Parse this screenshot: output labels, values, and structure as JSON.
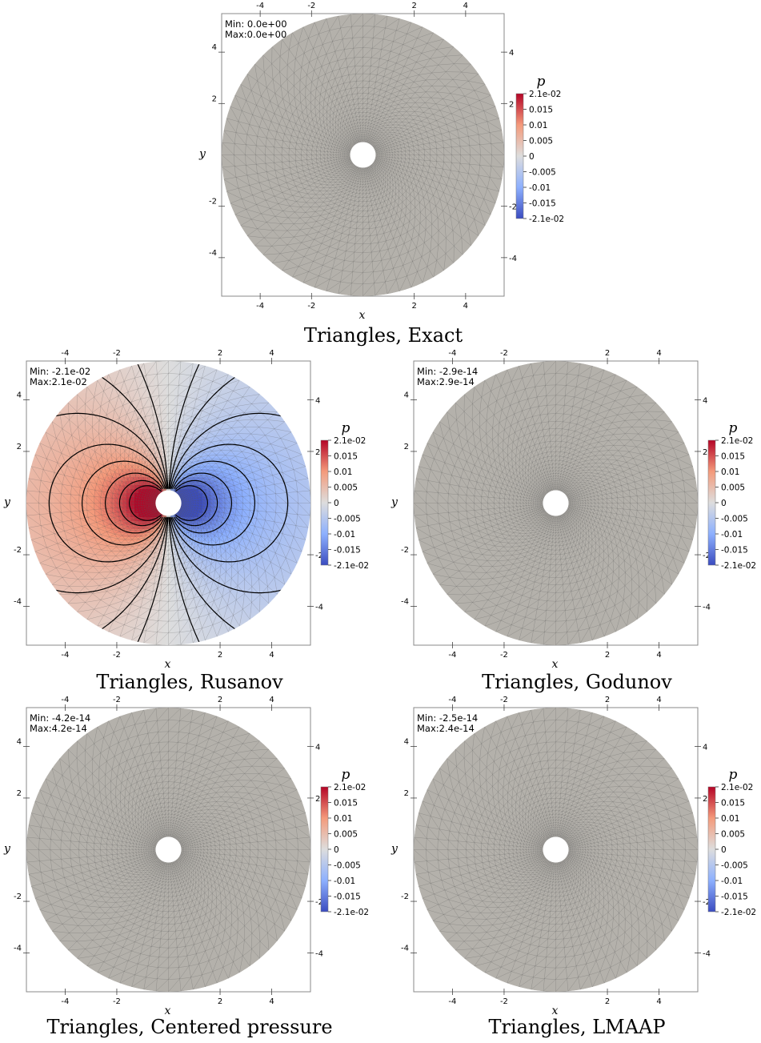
{
  "chart_data": [
    {
      "type": "heatmap",
      "title": "Triangles, Exact",
      "xlabel": "x",
      "ylabel": "y",
      "xlim": [
        -5.5,
        5.5
      ],
      "ylim": [
        -5.5,
        5.5
      ],
      "x_ticks": [
        "-4",
        "-2",
        "2",
        "4"
      ],
      "y_ticks": [
        "4",
        "2",
        "-2",
        "-4"
      ],
      "field": "constant",
      "min_text": "Min: 0.0e+00",
      "max_text": "Max:0.0e+00",
      "colorbar": {
        "title": "p",
        "range": [
          -0.021,
          0.021
        ],
        "labels": [
          "2.1e-02",
          "0.015",
          "0.01",
          "0.005",
          "0",
          "-0.005",
          "-0.01",
          "-0.015",
          "-2.1e-02"
        ]
      }
    },
    {
      "type": "heatmap",
      "title": "Triangles, Rusanov",
      "xlabel": "x",
      "ylabel": "y",
      "xlim": [
        -5.5,
        5.5
      ],
      "ylim": [
        -5.5,
        5.5
      ],
      "x_ticks": [
        "-4",
        "-2",
        "2",
        "4"
      ],
      "y_ticks": [
        "4",
        "2",
        "-2",
        "-4"
      ],
      "field": "dipole",
      "min_text": "Min: -2.1e-02",
      "max_text": "Max:2.1e-02",
      "colorbar": {
        "title": "p",
        "range": [
          -0.021,
          0.021
        ],
        "labels": [
          "2.1e-02",
          "0.015",
          "0.01",
          "0.005",
          "0",
          "-0.005",
          "-0.01",
          "-0.015",
          "-2.1e-02"
        ]
      }
    },
    {
      "type": "heatmap",
      "title": "Triangles, Godunov",
      "xlabel": "x",
      "ylabel": "y",
      "xlim": [
        -5.5,
        5.5
      ],
      "ylim": [
        -5.5,
        5.5
      ],
      "x_ticks": [
        "-4",
        "-2",
        "2",
        "4"
      ],
      "y_ticks": [
        "4",
        "2",
        "-2",
        "-4"
      ],
      "field": "constant",
      "min_text": "Min: -2.9e-14",
      "max_text": "Max:2.9e-14",
      "colorbar": {
        "title": "p",
        "range": [
          -0.021,
          0.021
        ],
        "labels": [
          "2.1e-02",
          "0.015",
          "0.01",
          "0.005",
          "0",
          "-0.005",
          "-0.01",
          "-0.015",
          "-2.1e-02"
        ]
      }
    },
    {
      "type": "heatmap",
      "title": "Triangles, Centered pressure",
      "xlabel": "x",
      "ylabel": "y",
      "xlim": [
        -5.5,
        5.5
      ],
      "ylim": [
        -5.5,
        5.5
      ],
      "x_ticks": [
        "-4",
        "-2",
        "2",
        "4"
      ],
      "y_ticks": [
        "4",
        "2",
        "-2",
        "-4"
      ],
      "field": "constant",
      "min_text": "Min: -4.2e-14",
      "max_text": "Max:4.2e-14",
      "colorbar": {
        "title": "p",
        "range": [
          -0.021,
          0.021
        ],
        "labels": [
          "2.1e-02",
          "0.015",
          "0.01",
          "0.005",
          "0",
          "-0.005",
          "-0.01",
          "-0.015",
          "-2.1e-02"
        ]
      }
    },
    {
      "type": "heatmap",
      "title": "Triangles, LMAAP",
      "xlabel": "x",
      "ylabel": "y",
      "xlim": [
        -5.5,
        5.5
      ],
      "ylim": [
        -5.5,
        5.5
      ],
      "x_ticks": [
        "-4",
        "-2",
        "2",
        "4"
      ],
      "y_ticks": [
        "4",
        "2",
        "-2",
        "-4"
      ],
      "field": "constant",
      "min_text": "Min: -2.5e-14",
      "max_text": "Max:2.4e-14",
      "colorbar": {
        "title": "p",
        "range": [
          -0.021,
          0.021
        ],
        "labels": [
          "2.1e-02",
          "0.015",
          "0.01",
          "0.005",
          "0",
          "-0.005",
          "-0.01",
          "-0.015",
          "-2.1e-02"
        ]
      }
    }
  ],
  "colors": {
    "neutral": "#b4b1ab",
    "high": "#b40426",
    "low": "#3b4cc0",
    "mesh": "#5a5a5a"
  }
}
